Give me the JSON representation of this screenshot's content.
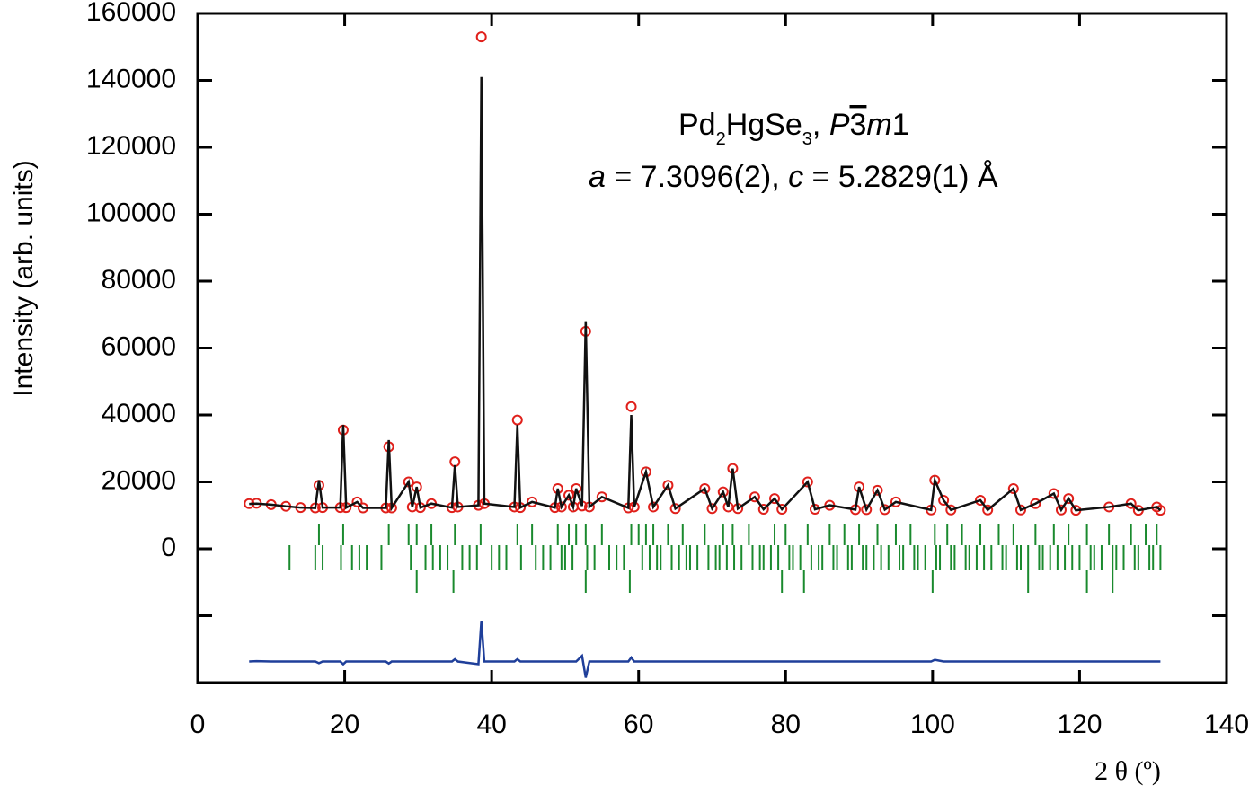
{
  "chart_data": {
    "type": "rietveld",
    "ylabel": "Intensity (arb. units)",
    "xlabel": "2 θ  (º)",
    "annotation": {
      "formula": [
        "Pd",
        "2",
        "HgSe",
        "3",
        ", "
      ],
      "space_group": [
        "P",
        "3",
        "m",
        "1"
      ],
      "lattice": [
        "a",
        " = 7.3096(2), ",
        "c",
        " = 5.2829(1) Å"
      ]
    },
    "xlim": [
      0,
      140
    ],
    "xticks": [
      0,
      20,
      40,
      60,
      80,
      100,
      120,
      140
    ],
    "ylim": [
      -40000,
      160000
    ],
    "yticks": [
      0,
      20000,
      40000,
      60000,
      80000,
      100000,
      120000,
      140000,
      160000
    ],
    "yminor": [
      -20000
    ],
    "x": [
      7,
      8,
      10,
      12,
      14,
      16,
      16.5,
      17,
      19.4,
      19.8,
      20.2,
      21.7,
      22.5,
      25.6,
      26,
      26.4,
      28.7,
      29.2,
      29.8,
      30.3,
      31.8,
      34.6,
      35,
      35.4,
      38.2,
      38.6,
      39,
      43.1,
      43.5,
      43.9,
      45.5,
      48.6,
      49,
      49.5,
      50.5,
      51.1,
      51.5,
      52.3,
      52.8,
      53.3,
      55,
      58.6,
      59,
      59.4,
      61,
      62,
      64,
      65,
      69,
      70,
      71.5,
      72.2,
      72.8,
      73.5,
      75.8,
      77,
      78.5,
      79.5,
      83,
      84,
      86,
      89.5,
      90,
      91,
      92.5,
      93.5,
      95,
      99.8,
      100.3,
      101.5,
      102.5,
      106.5,
      107.5,
      111,
      112,
      114,
      116.5,
      117.5,
      118.5,
      119.5,
      124,
      127,
      128,
      130.5,
      131
    ],
    "series": [
      {
        "style": "circles",
        "color": "#e0201b",
        "values": [
          13500,
          13600,
          13200,
          12700,
          12300,
          12200,
          19000,
          12300,
          12300,
          35500,
          12300,
          14000,
          12200,
          12200,
          30500,
          12200,
          20000,
          12500,
          18500,
          12300,
          13500,
          12300,
          26000,
          12500,
          13000,
          153000,
          13500,
          12500,
          38500,
          12300,
          14000,
          12300,
          18000,
          12500,
          16000,
          12500,
          18000,
          12800,
          65000,
          12500,
          15500,
          12200,
          42500,
          12500,
          23000,
          12500,
          19000,
          12000,
          18000,
          12000,
          17000,
          12500,
          24000,
          12000,
          15500,
          11800,
          15000,
          11800,
          20000,
          11800,
          13000,
          11700,
          18500,
          11700,
          17500,
          11700,
          14000,
          11600,
          20500,
          14500,
          11600,
          14500,
          11600,
          18000,
          11600,
          13500,
          16500,
          11600,
          15000,
          11500,
          12500,
          13500,
          11500,
          12500,
          11500
        ]
      },
      {
        "style": "line",
        "color": "#111111",
        "values": [
          13400,
          13500,
          13200,
          12700,
          12300,
          12200,
          20500,
          12300,
          12300,
          37000,
          12300,
          14000,
          12200,
          12200,
          32500,
          12200,
          20000,
          12500,
          18500,
          12300,
          13500,
          12300,
          25000,
          12500,
          13000,
          141000,
          13500,
          12500,
          37000,
          12300,
          14000,
          12300,
          18000,
          12500,
          16000,
          12500,
          18000,
          12800,
          68000,
          12500,
          15500,
          12200,
          40000,
          12500,
          23000,
          12500,
          19000,
          12000,
          18000,
          12000,
          17000,
          12500,
          24000,
          12000,
          15500,
          11800,
          15000,
          11800,
          20000,
          11800,
          13000,
          11700,
          18500,
          11700,
          17500,
          11700,
          14000,
          11600,
          20500,
          14500,
          11600,
          14500,
          11600,
          18000,
          11600,
          13500,
          16500,
          11600,
          15000,
          11500,
          12500,
          13500,
          11500,
          12500,
          11500
        ]
      },
      {
        "style": "line",
        "color": "#1f3f9a",
        "values": [
          -33700,
          -33600,
          -33700,
          -33700,
          -33700,
          -33700,
          -34200,
          -33700,
          -33700,
          -34500,
          -33700,
          -33700,
          -33700,
          -33700,
          -34300,
          -33700,
          -33700,
          -33700,
          -33700,
          -33700,
          -33700,
          -33700,
          -33000,
          -33700,
          -34500,
          -21500,
          -33700,
          -33700,
          -33000,
          -33700,
          -33700,
          -33700,
          -33700,
          -33700,
          -33700,
          -33700,
          -33700,
          -32000,
          -38500,
          -33700,
          -33700,
          -33700,
          -32500,
          -33700,
          -33700,
          -33700,
          -33700,
          -33700,
          -33700,
          -33700,
          -33700,
          -33700,
          -33700,
          -33700,
          -33700,
          -33700,
          -33700,
          -33700,
          -33700,
          -33700,
          -33700,
          -33700,
          -33700,
          -33700,
          -33700,
          -33700,
          -33700,
          -33700,
          -33200,
          -33700,
          -33700,
          -33700,
          -33700,
          -33700,
          -33700,
          -33700,
          -33700,
          -33700,
          -33700,
          -33700,
          -33700,
          -33700,
          -33700,
          -33700,
          -33700
        ]
      }
    ],
    "tick_rows": [
      {
        "color": "#1a8a2e",
        "x": [
          16.5,
          19.8,
          26,
          28.7,
          29.8,
          31.8,
          35,
          38.5,
          43.5,
          45.5,
          49,
          50.5,
          51.5,
          52.8,
          55,
          59,
          60,
          61,
          62,
          64,
          66,
          69,
          71.5,
          72.8,
          75,
          78.5,
          80,
          83,
          86,
          88,
          90,
          92.5,
          95,
          97,
          100.3,
          102,
          104,
          106.5,
          109,
          111,
          114,
          116.5,
          118.5,
          121,
          124,
          127,
          129,
          130.5
        ]
      },
      {
        "color": "#1a8a2e",
        "x": [
          12.5,
          16,
          17,
          19.5,
          21,
          22,
          23,
          25,
          29,
          31,
          32,
          33,
          34,
          36,
          37,
          38,
          40,
          41,
          42,
          44,
          46,
          47,
          48,
          49.5,
          50,
          51,
          53,
          54,
          56,
          57,
          58,
          60.5,
          61.5,
          62.5,
          63,
          64.5,
          65.5,
          66.5,
          67,
          68,
          69.5,
          70.5,
          71,
          72,
          73,
          74,
          75.5,
          76.5,
          77,
          78,
          79,
          80.5,
          81,
          82,
          83.5,
          84.5,
          85,
          86.5,
          87,
          88.5,
          89,
          90.5,
          91,
          92,
          93,
          94,
          95.5,
          96,
          97.5,
          98,
          99,
          100.5,
          101,
          102.5,
          103,
          104.5,
          105,
          106,
          107,
          108,
          109.5,
          110,
          111.5,
          112,
          113,
          114.5,
          115,
          116,
          117,
          118,
          119,
          120,
          121.5,
          122,
          123,
          124.5,
          125,
          126,
          127.5,
          128,
          129.5,
          130,
          131
        ]
      },
      {
        "color": "#1a8a2e",
        "x": [
          29.8,
          34.8,
          52.8,
          58.8,
          79.5,
          82.5,
          100,
          113,
          121,
          124.5
        ]
      }
    ]
  }
}
